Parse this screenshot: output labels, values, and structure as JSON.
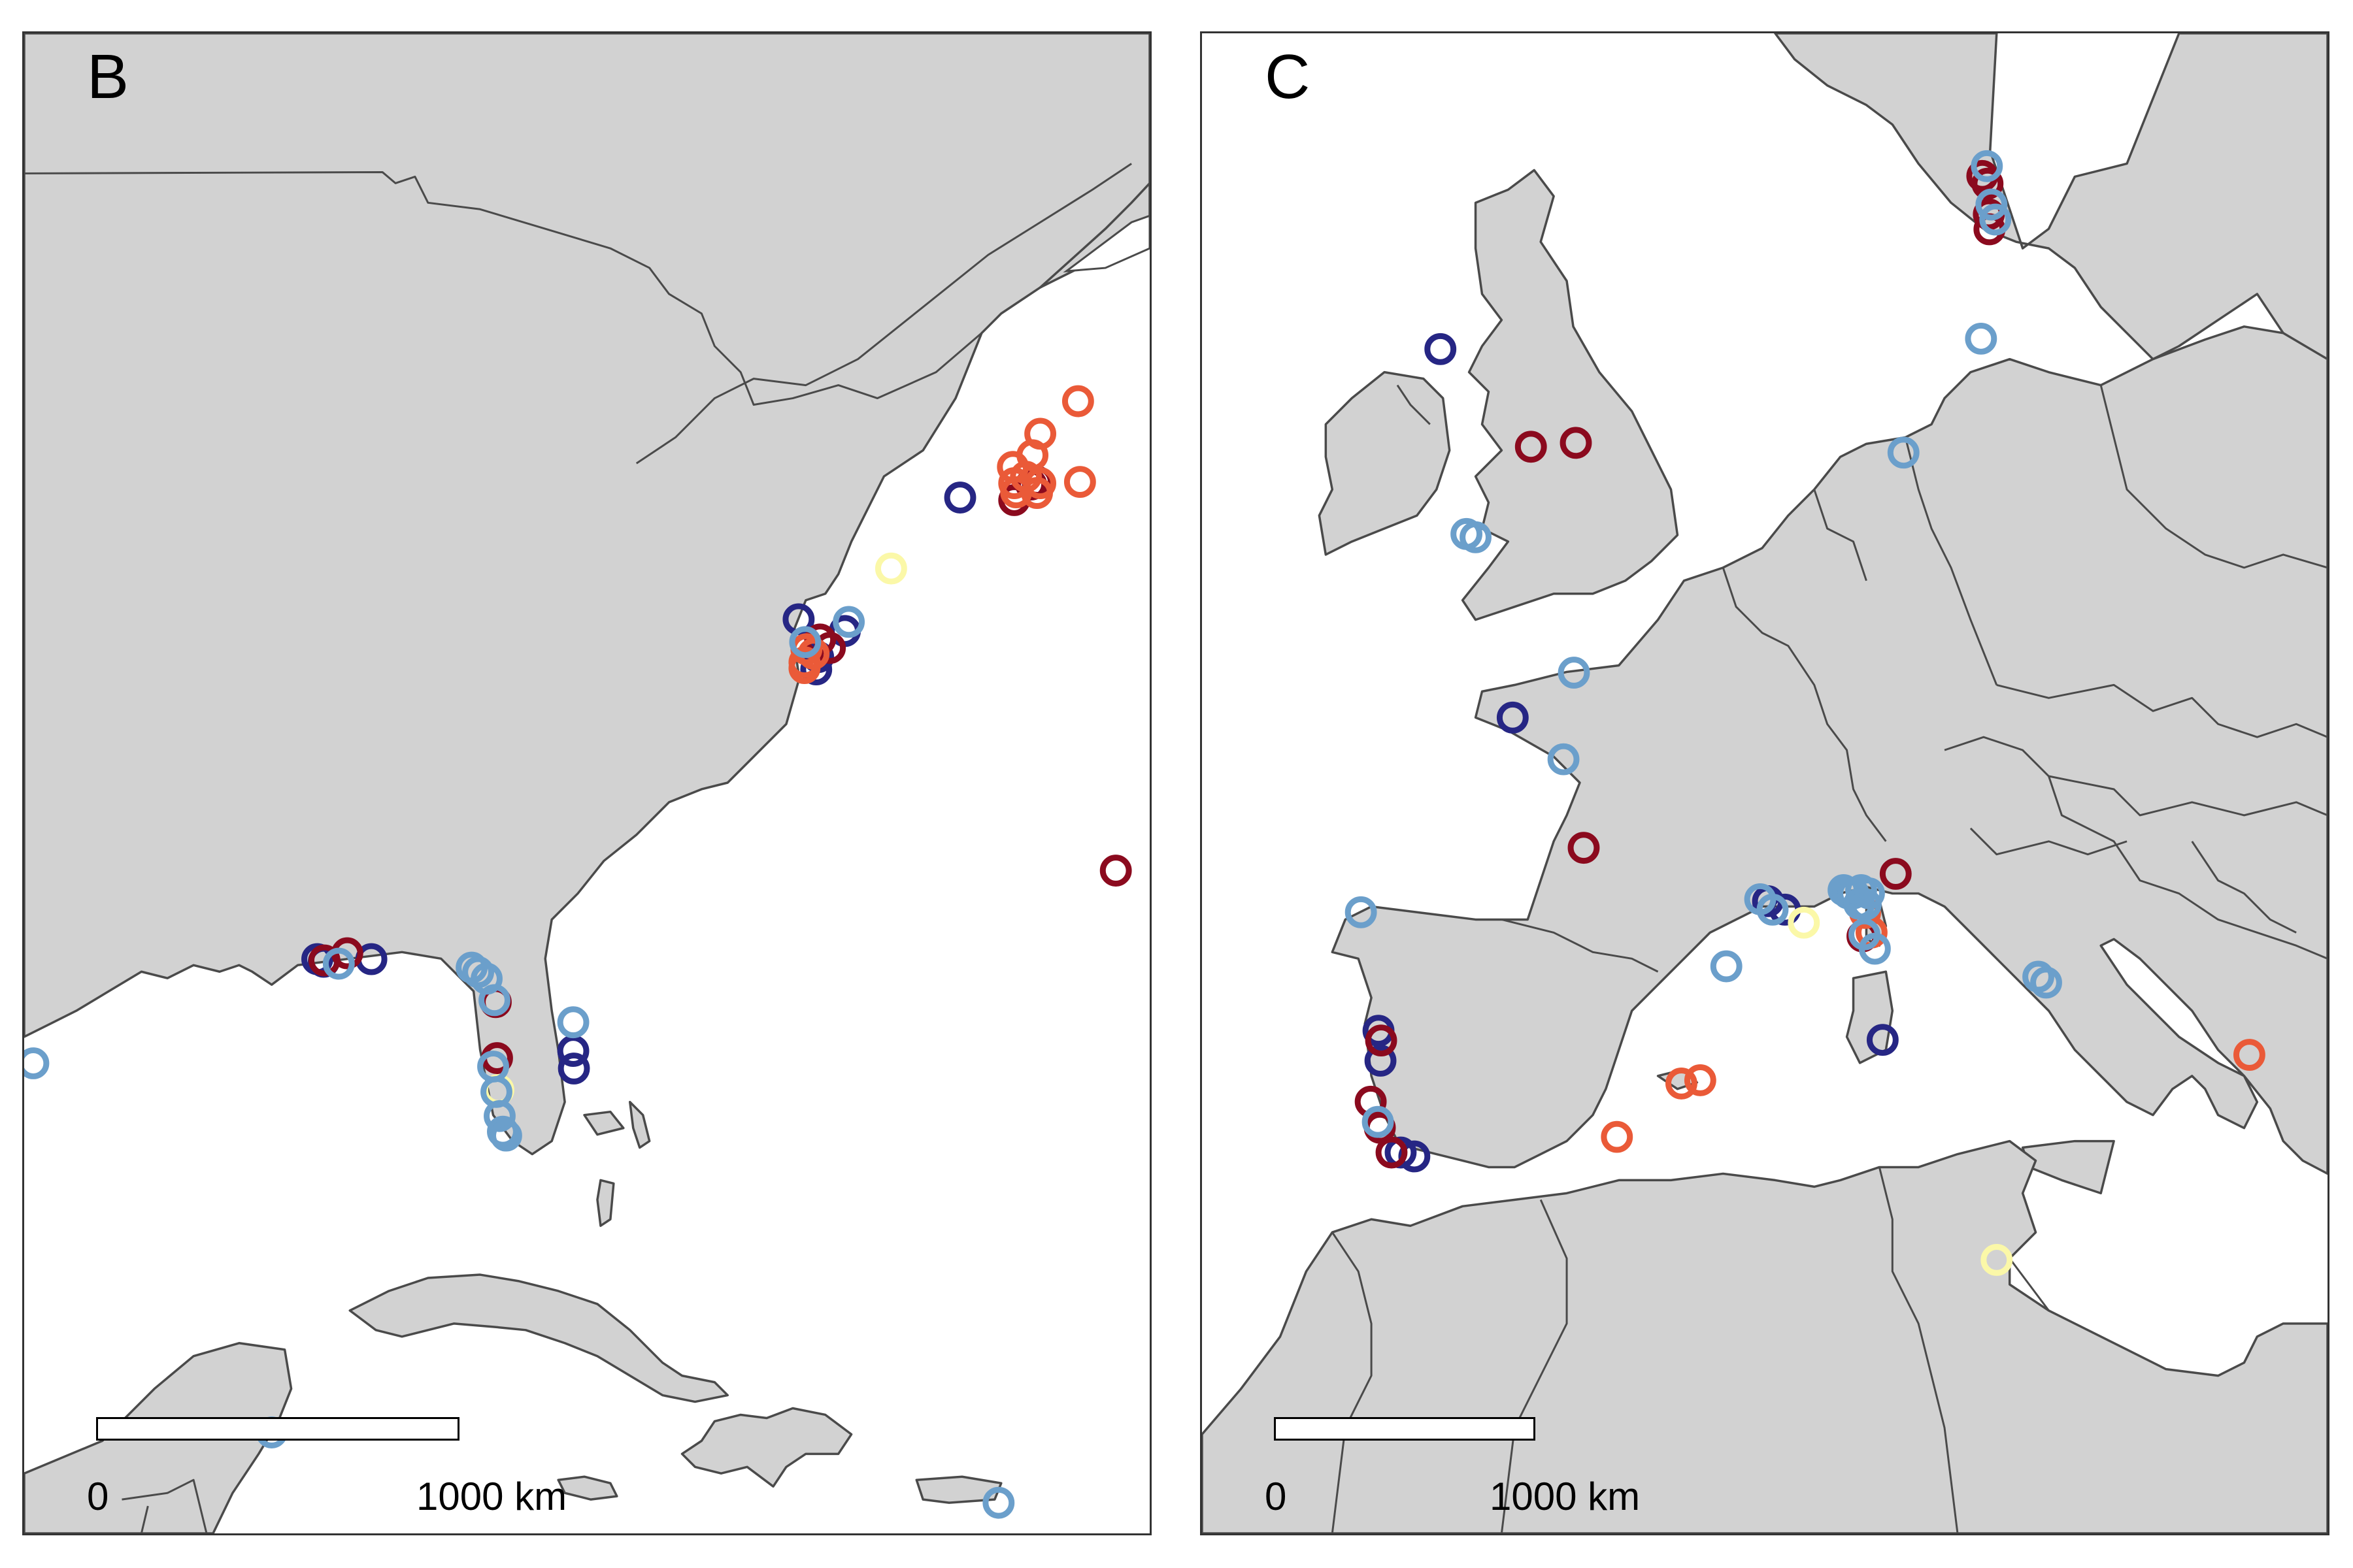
{
  "colors": {
    "dark_red": "#8b0a1e",
    "orange_red": "#ea5a38",
    "light_yellow": "#fbf8a8",
    "light_blue": "#6b9fcb",
    "navy": "#262684",
    "land": "#d2d2d2",
    "water": "#ffffff"
  },
  "panels": [
    {
      "id": "B",
      "label": "B",
      "scalebar": {
        "start_label": "0",
        "end_label": "1000 km"
      },
      "sites": [
        {
          "c": "navy",
          "pts": [
            [
              1437,
              712
            ],
            [
              1189,
              899
            ],
            [
              1216,
              976
            ],
            [
              1219,
              957
            ],
            [
              1260,
              917
            ],
            [
              450,
              1421
            ],
            [
              460,
              1425
            ],
            [
              533,
              1421
            ],
            [
              843,
              1562
            ],
            [
              844,
              1589
            ]
          ]
        },
        {
          "c": "dark_red",
          "pts": [
            [
              1520,
              716
            ],
            [
              1546,
              692
            ],
            [
              1556,
              688
            ],
            [
              1222,
              930
            ],
            [
              1237,
              943
            ],
            [
              1676,
              1285
            ],
            [
              496,
              1412
            ],
            [
              461,
              1423
            ],
            [
              724,
              1487
            ],
            [
              726,
              1573
            ]
          ]
        },
        {
          "c": "orange_red",
          "pts": [
            [
              1618,
              564
            ],
            [
              1560,
              614
            ],
            [
              1548,
              647
            ],
            [
              1538,
              680
            ],
            [
              1520,
              690
            ],
            [
              1560,
              690
            ],
            [
              1523,
              704
            ],
            [
              1555,
              705
            ],
            [
              1621,
              688
            ],
            [
              1518,
              665
            ],
            [
              1201,
              945
            ],
            [
              1198,
              965
            ],
            [
              1212,
              952
            ],
            [
              1198,
              974
            ]
          ]
        },
        {
          "c": "light_yellow",
          "pts": [
            [
              1331,
              821
            ],
            [
              728,
              1622
            ]
          ]
        },
        {
          "c": "light_blue",
          "pts": [
            [
              1266,
              903
            ],
            [
              1199,
              934
            ],
            [
              483,
              1428
            ],
            [
              687,
              1434
            ],
            [
              697,
              1441
            ],
            [
              710,
              1451
            ],
            [
              722,
              1484
            ],
            [
              720,
              1586
            ],
            [
              725,
              1625
            ],
            [
              730,
              1662
            ],
            [
              735,
              1686
            ],
            [
              740,
              1692
            ],
            [
              843,
              1518
            ],
            [
              380,
              2148
            ],
            [
              1496,
              2256
            ],
            [
              14,
              1581
            ]
          ]
        }
      ]
    },
    {
      "id": "C",
      "label": "C",
      "scalebar": {
        "start_label": "0",
        "end_label": "1000 km"
      },
      "sites": [
        {
          "c": "navy",
          "pts": [
            [
              366,
              484
            ],
            [
              477,
              1050
            ],
            [
              869,
              1332
            ],
            [
              895,
              1345
            ],
            [
              271,
              1531
            ],
            [
              274,
              1577
            ],
            [
              305,
              1718
            ],
            [
              326,
              1724
            ],
            [
              1045,
              1545
            ]
          ]
        },
        {
          "c": "dark_red",
          "pts": [
            [
              505,
              634
            ],
            [
              574,
              628
            ],
            [
              1198,
              218
            ],
            [
              1206,
              230
            ],
            [
              1208,
              277
            ],
            [
              1209,
              300
            ],
            [
              586,
              1250
            ],
            [
              1014,
              1386
            ],
            [
              1065,
              1290
            ],
            [
              275,
              1546
            ],
            [
              273,
              1680
            ],
            [
              291,
              1718
            ],
            [
              1840,
              1517
            ],
            [
              259,
              1640
            ]
          ]
        },
        {
          "c": "orange_red",
          "pts": [
            [
              1018,
              1350
            ],
            [
              1028,
              1380
            ],
            [
              736,
              1612
            ],
            [
              765,
              1607
            ],
            [
              637,
              1694
            ],
            [
              1608,
              1568
            ]
          ]
        },
        {
          "c": "light_yellow",
          "pts": [
            [
              924,
              1365
            ],
            [
              1220,
              1883
            ]
          ]
        },
        {
          "c": "light_blue",
          "pts": [
            [
              1205,
              203
            ],
            [
              1212,
              262
            ],
            [
              1218,
              285
            ],
            [
              1196,
              468
            ],
            [
              1077,
              643
            ],
            [
              406,
              768
            ],
            [
              420,
              773
            ],
            [
              571,
              981
            ],
            [
              555,
              1114
            ],
            [
              244,
              1349
            ],
            [
              857,
              1329
            ],
            [
              805,
              1432
            ],
            [
              876,
              1345
            ],
            [
              1019,
              1337
            ],
            [
              985,
              1315
            ],
            [
              992,
              1320
            ],
            [
              1000,
              1320
            ],
            [
              1012,
              1315
            ],
            [
              1024,
              1320
            ],
            [
              1009,
              1336
            ],
            [
              1033,
              1405
            ],
            [
              1017,
              1383
            ],
            [
              1296,
              1457
            ],
            [
              1284,
              1448
            ],
            [
              270,
              1671
            ]
          ]
        }
      ]
    }
  ]
}
